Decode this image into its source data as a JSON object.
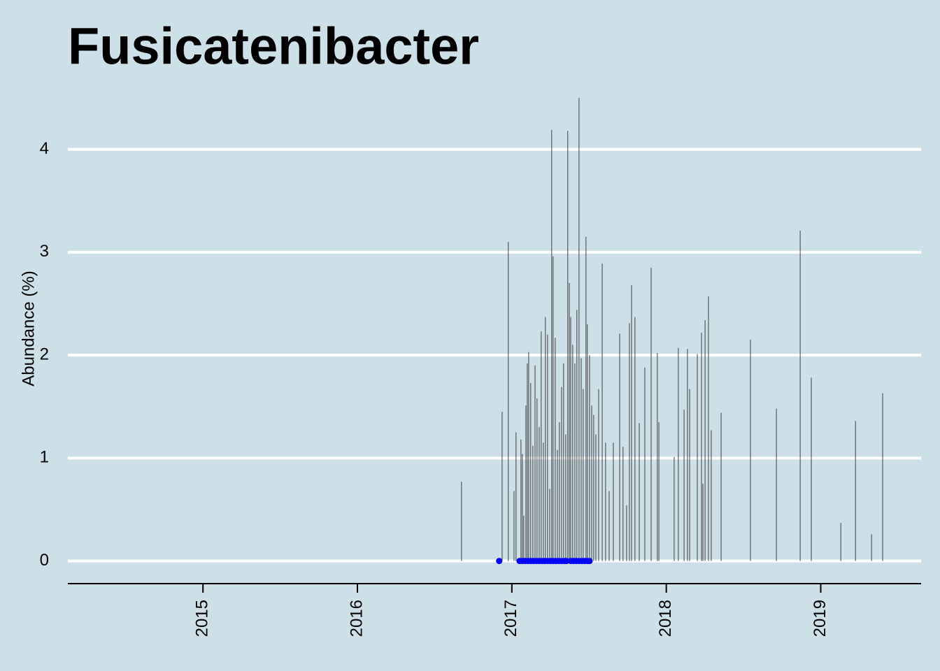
{
  "chart_data": {
    "type": "spike",
    "title": "Fusicatenibacter",
    "y_label": "Abundance (%)",
    "xlim": [
      2014.125,
      2019.65
    ],
    "xticks": [
      2015,
      2016,
      2017,
      2018,
      2019
    ],
    "ylim": [
      -0.22,
      4.5
    ],
    "yticks": [
      0,
      1,
      2,
      3,
      4
    ],
    "grid": true,
    "series": [
      {
        "type": "spike",
        "color": "#404040",
        "x": [
          2016.674,
          2016.937,
          2016.977,
          2017.014,
          2017.027,
          2017.059,
          2017.068,
          2017.077,
          2017.091,
          2017.1,
          2017.109,
          2017.122,
          2017.136,
          2017.15,
          2017.163,
          2017.177,
          2017.19,
          2017.204,
          2017.217,
          2017.231,
          2017.245,
          2017.258,
          2017.267,
          2017.281,
          2017.295,
          2017.308,
          2017.322,
          2017.335,
          2017.349,
          2017.362,
          2017.372,
          2017.381,
          2017.394,
          2017.408,
          2017.421,
          2017.435,
          2017.449,
          2017.462,
          2017.48,
          2017.489,
          2017.503,
          2017.517,
          2017.53,
          2017.544,
          2017.562,
          2017.585,
          2017.607,
          2017.63,
          2017.657,
          2017.698,
          2017.72,
          2017.743,
          2017.761,
          2017.775,
          2017.797,
          2017.825,
          2017.861,
          2017.902,
          2017.942,
          2017.952,
          2018.051,
          2018.078,
          2018.115,
          2018.137,
          2018.151,
          2018.201,
          2018.228,
          2018.237,
          2018.251,
          2018.273,
          2018.291,
          2018.355,
          2018.545,
          2018.713,
          2018.867,
          2018.939,
          2019.13,
          2019.225,
          2019.329,
          2019.401
        ],
        "values": [
          0.77,
          1.45,
          3.1,
          0.68,
          1.25,
          1.18,
          1.04,
          0.44,
          1.51,
          1.92,
          2.03,
          1.73,
          1.12,
          1.9,
          1.58,
          1.3,
          2.23,
          1.15,
          2.37,
          2.2,
          0.7,
          4.19,
          2.96,
          2.17,
          1.08,
          1.35,
          1.69,
          1.92,
          1.23,
          4.18,
          2.7,
          2.37,
          2.1,
          1.92,
          2.44,
          4.5,
          1.97,
          1.67,
          3.15,
          2.3,
          2.0,
          1.51,
          1.42,
          1.23,
          1.67,
          2.89,
          1.15,
          0.68,
          1.15,
          2.21,
          1.11,
          0.54,
          2.31,
          2.68,
          2.37,
          1.34,
          1.88,
          2.85,
          2.02,
          1.35,
          1.01,
          2.07,
          1.47,
          2.06,
          1.67,
          2.01,
          2.22,
          0.75,
          2.34,
          2.57,
          1.27,
          1.44,
          2.15,
          1.48,
          3.21,
          1.78,
          0.37,
          1.36,
          0.26,
          1.63
        ]
      },
      {
        "type": "point",
        "color": "#0000ff",
        "x": [
          2016.918,
          2017.05,
          2017.068,
          2017.086,
          2017.104,
          2017.122,
          2017.14,
          2017.159,
          2017.177,
          2017.195,
          2017.213,
          2017.231,
          2017.249,
          2017.267,
          2017.285,
          2017.304,
          2017.322,
          2017.34,
          2017.353,
          2017.381,
          2017.399,
          2017.417,
          2017.435,
          2017.453,
          2017.471,
          2017.489,
          2017.503
        ],
        "values": [
          0,
          0,
          0,
          0,
          0,
          0,
          0,
          0,
          0,
          0,
          0,
          0,
          0,
          0,
          0,
          0,
          0,
          0,
          0,
          0,
          0,
          0,
          0,
          0,
          0,
          0,
          0
        ]
      }
    ]
  }
}
